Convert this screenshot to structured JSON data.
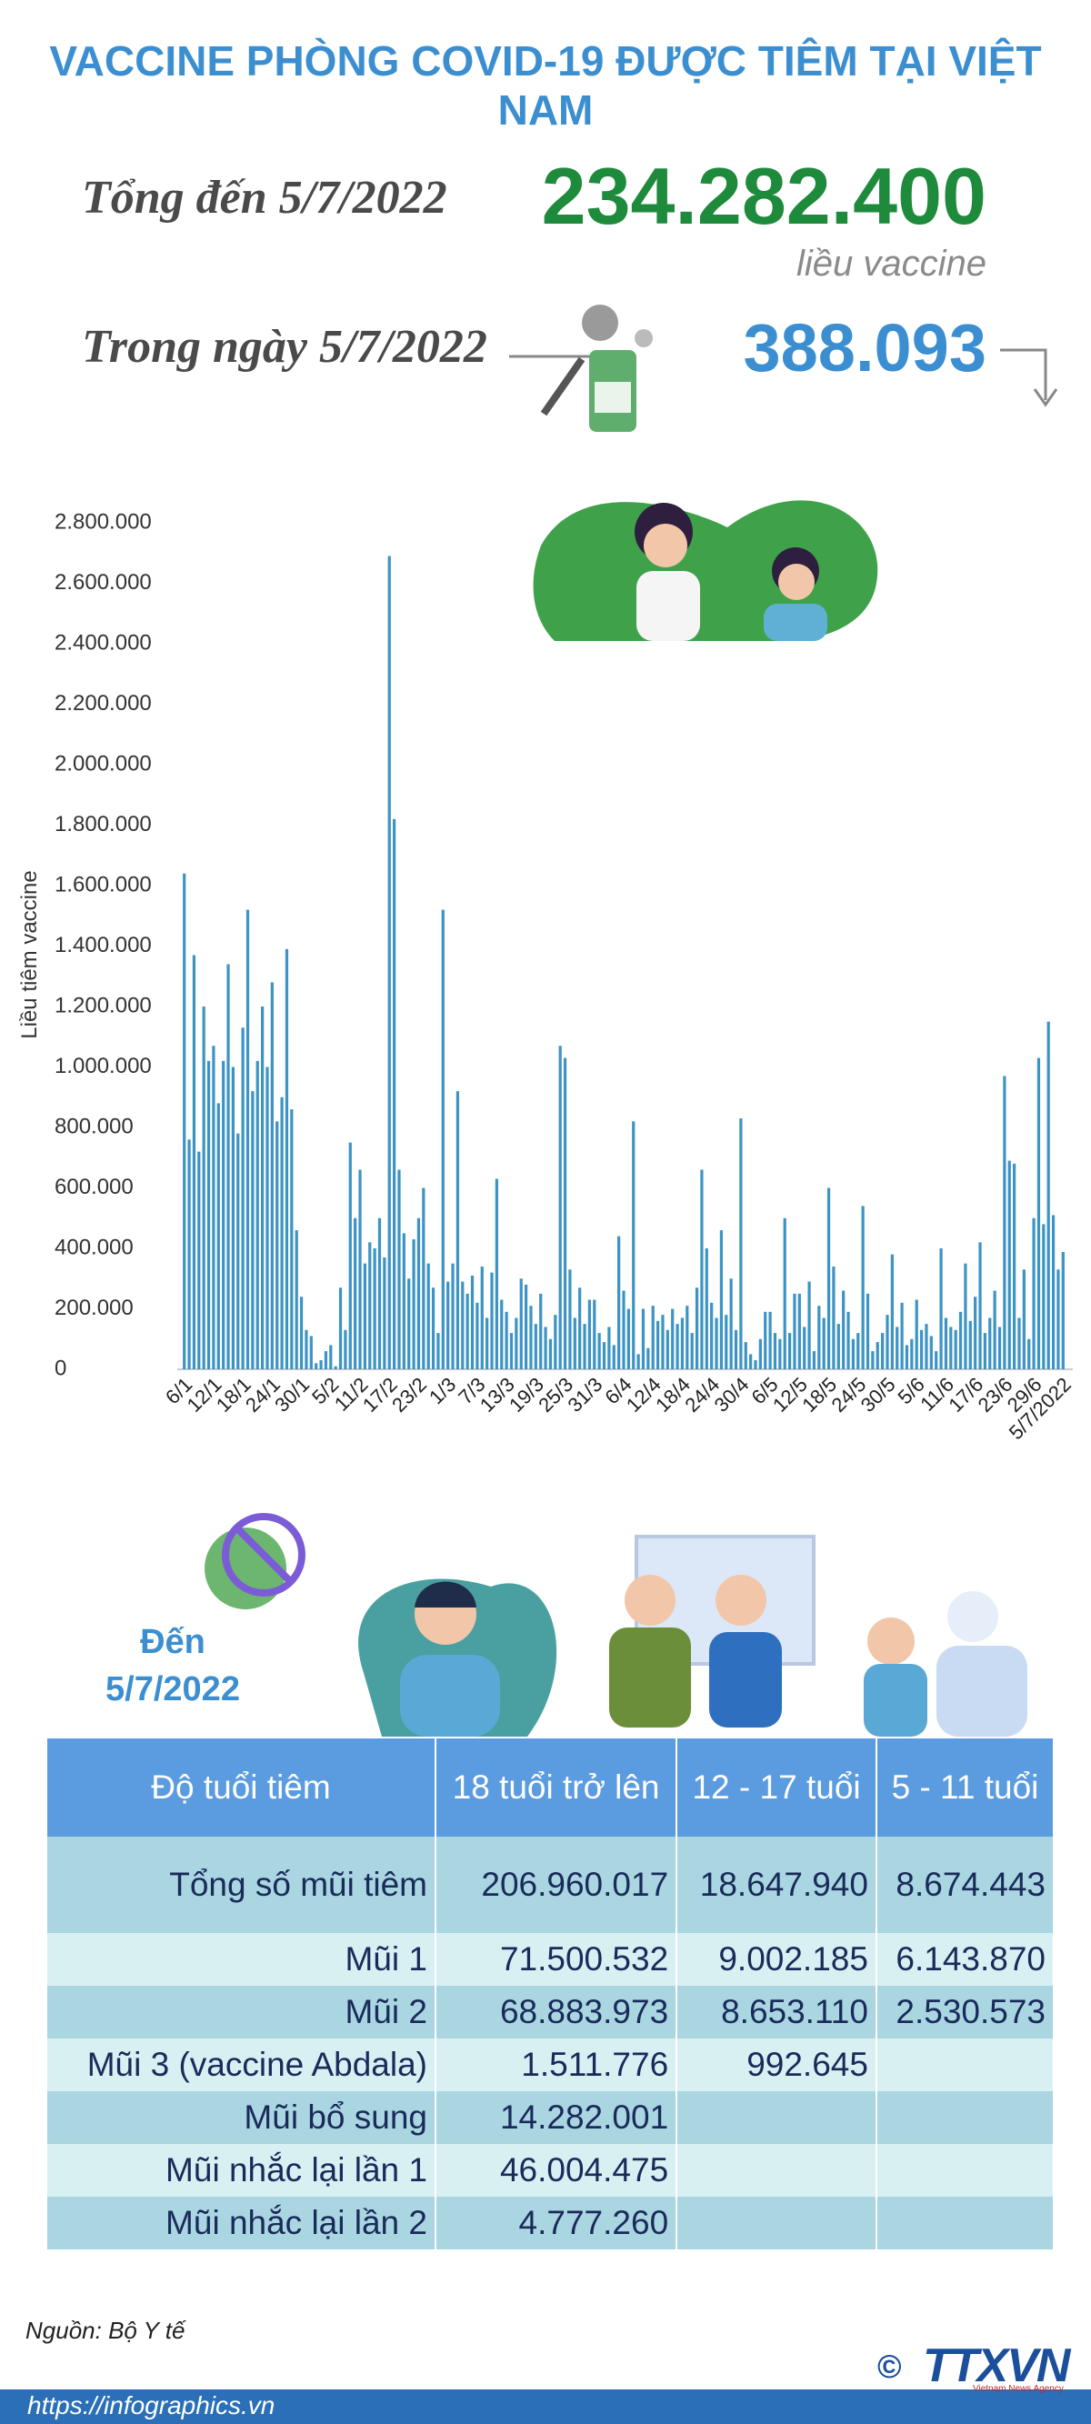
{
  "header": {
    "title": "VACCINE PHÒNG COVID-19 ĐƯỢC TIÊM TẠI VIỆT NAM"
  },
  "summary": {
    "total_label": "Tổng đến 5/7/2022",
    "total_value": "234.282.400",
    "total_unit": "liều vaccine",
    "day_label": "Trong ngày 5/7/2022",
    "day_value": "388.093"
  },
  "chart_data": {
    "type": "bar",
    "y_label": "Liều tiêm vaccine",
    "color": "#3d94c4",
    "grid": false,
    "ylim": [
      0,
      2800000
    ],
    "yticks": [
      0,
      {
        "value": 200000,
        "label": "200.000"
      },
      {
        "value": 400000,
        "label": "400.000"
      },
      {
        "value": 600000,
        "label": "600.000"
      },
      {
        "value": 800000,
        "label": "800.000"
      },
      {
        "value": 1000000,
        "label": "1.000.000"
      },
      {
        "value": 1200000,
        "label": "1.200.000"
      },
      {
        "value": 1400000,
        "label": "1.400.000"
      },
      {
        "value": 1600000,
        "label": "1.600.000"
      },
      {
        "value": 1800000,
        "label": "1.800.000"
      },
      {
        "value": 2000000,
        "label": "2.000.000"
      },
      {
        "value": 2200000,
        "label": "2.200.000"
      },
      {
        "value": 2400000,
        "label": "2.400.000"
      },
      {
        "value": 2600000,
        "label": "2.600.000"
      },
      {
        "value": 2800000,
        "label": "2.800.000"
      }
    ],
    "categories": [
      "6/1",
      null,
      null,
      null,
      null,
      null,
      "12/1",
      null,
      null,
      null,
      null,
      null,
      "18/1",
      null,
      null,
      null,
      null,
      null,
      "24/1",
      null,
      null,
      null,
      null,
      null,
      "30/1",
      null,
      null,
      null,
      null,
      null,
      "5/2",
      null,
      null,
      null,
      null,
      null,
      "11/2",
      null,
      null,
      null,
      null,
      null,
      "17/2",
      null,
      null,
      null,
      null,
      null,
      "23/2",
      null,
      null,
      null,
      null,
      null,
      "1/3",
      null,
      null,
      null,
      null,
      null,
      "7/3",
      null,
      null,
      null,
      null,
      null,
      "13/3",
      null,
      null,
      null,
      null,
      null,
      "19/3",
      null,
      null,
      null,
      null,
      null,
      "25/3",
      null,
      null,
      null,
      null,
      null,
      "31/3",
      null,
      null,
      null,
      null,
      null,
      "6/4",
      null,
      null,
      null,
      null,
      null,
      "12/4",
      null,
      null,
      null,
      null,
      null,
      "18/4",
      null,
      null,
      null,
      null,
      null,
      "24/4",
      null,
      null,
      null,
      null,
      null,
      "30/4",
      null,
      null,
      null,
      null,
      null,
      "6/5",
      null,
      null,
      null,
      null,
      null,
      "12/5",
      null,
      null,
      null,
      null,
      null,
      "18/5",
      null,
      null,
      null,
      null,
      null,
      "24/5",
      null,
      null,
      null,
      null,
      null,
      "30/5",
      null,
      null,
      null,
      null,
      null,
      "5/6",
      null,
      null,
      null,
      null,
      null,
      "11/6",
      null,
      null,
      null,
      null,
      null,
      "17/6",
      null,
      null,
      null,
      null,
      null,
      "23/6",
      null,
      null,
      null,
      null,
      null,
      "29/6",
      null,
      null,
      null,
      null,
      null,
      "5/7/2022"
    ],
    "values": [
      1640000,
      760000,
      1370000,
      720000,
      1200000,
      1020000,
      1070000,
      880000,
      1020000,
      1340000,
      1000000,
      780000,
      1130000,
      1520000,
      920000,
      1020000,
      1200000,
      1000000,
      1280000,
      820000,
      900000,
      1390000,
      860000,
      460000,
      240000,
      130000,
      110000,
      20000,
      30000,
      60000,
      80000,
      10000,
      270000,
      130000,
      750000,
      500000,
      660000,
      350000,
      420000,
      400000,
      500000,
      370000,
      2690000,
      1820000,
      660000,
      450000,
      300000,
      430000,
      500000,
      600000,
      350000,
      270000,
      120000,
      1520000,
      290000,
      350000,
      920000,
      290000,
      250000,
      310000,
      220000,
      340000,
      170000,
      320000,
      630000,
      230000,
      190000,
      120000,
      170000,
      300000,
      280000,
      210000,
      150000,
      250000,
      140000,
      100000,
      180000,
      1070000,
      1030000,
      330000,
      170000,
      270000,
      150000,
      230000,
      230000,
      120000,
      90000,
      140000,
      80000,
      440000,
      260000,
      200000,
      820000,
      50000,
      200000,
      70000,
      210000,
      160000,
      180000,
      130000,
      200000,
      150000,
      170000,
      210000,
      120000,
      270000,
      660000,
      400000,
      220000,
      170000,
      460000,
      180000,
      300000,
      130000,
      830000,
      90000,
      50000,
      30000,
      100000,
      190000,
      190000,
      120000,
      100000,
      500000,
      120000,
      250000,
      250000,
      140000,
      290000,
      60000,
      210000,
      170000,
      600000,
      340000,
      150000,
      260000,
      190000,
      100000,
      120000,
      540000,
      250000,
      60000,
      90000,
      120000,
      180000,
      380000,
      140000,
      220000,
      80000,
      100000,
      230000,
      130000,
      150000,
      110000,
      60000,
      400000,
      170000,
      140000,
      130000,
      190000,
      350000,
      160000,
      240000,
      420000,
      120000,
      170000,
      260000,
      140000,
      970000,
      690000,
      680000,
      170000,
      330000,
      100000,
      500000,
      1030000,
      480000,
      1150000,
      510000,
      330000,
      388093
    ]
  },
  "as_of": {
    "line1": "Đến",
    "line2": "5/7/2022"
  },
  "table": {
    "header": [
      "Độ tuổi tiêm",
      "18 tuổi trở lên",
      "12 - 17 tuổi",
      "5 - 11 tuổi"
    ],
    "rows": [
      [
        "Tổng số mũi tiêm",
        "206.960.017",
        "18.647.940",
        "8.674.443"
      ],
      [
        "Mũi 1",
        "71.500.532",
        "9.002.185",
        "6.143.870"
      ],
      [
        "Mũi 2",
        "68.883.973",
        "8.653.110",
        "2.530.573"
      ],
      [
        "Mũi 3 (vaccine Abdala)",
        "1.511.776",
        "992.645",
        null
      ],
      [
        "Mũi bổ sung",
        "14.282.001",
        null,
        null
      ],
      [
        "Mũi nhắc lại lần 1",
        "46.004.475",
        null,
        null
      ],
      [
        "Mũi nhắc lại lần 2",
        "4.777.260",
        null,
        null
      ]
    ]
  },
  "footer": {
    "source": "Nguồn: Bộ Y tế",
    "url": "https://infographics.vn",
    "copyright": "©",
    "logo": "TTXVN",
    "agency": "Vietnam News Agency"
  }
}
